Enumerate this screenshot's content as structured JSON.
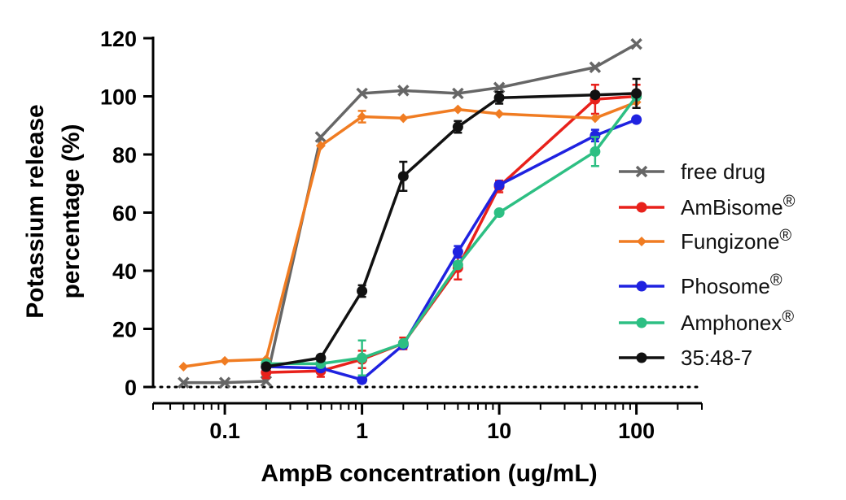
{
  "chart_data": {
    "type": "line",
    "title": "",
    "xlabel": "AmpB concentration (ug/mL)",
    "ylabel_lines": [
      "Potassium release",
      "percentage (%)"
    ],
    "x_scale": "log",
    "xlim": [
      0.03,
      300
    ],
    "ylim": [
      0,
      120
    ],
    "x_ticks": [
      0.1,
      1,
      10,
      100
    ],
    "x_tick_labels": [
      "0.1",
      "1",
      "10",
      "100"
    ],
    "y_ticks": [
      0,
      20,
      40,
      60,
      80,
      100,
      120
    ],
    "y_tick_labels": [
      "0",
      "20",
      "40",
      "60",
      "80",
      "100",
      "120"
    ],
    "reference_line": {
      "y": 0,
      "style": "dotted"
    },
    "legend_position": "right",
    "grid": false,
    "series": [
      {
        "name": "free drug",
        "suffix": "",
        "color": "#666666",
        "marker": "x",
        "points": [
          {
            "x": 0.05,
            "y": 1.5
          },
          {
            "x": 0.1,
            "y": 1.5
          },
          {
            "x": 0.2,
            "y": 2
          },
          {
            "x": 0.5,
            "y": 86
          },
          {
            "x": 1,
            "y": 101
          },
          {
            "x": 2,
            "y": 102
          },
          {
            "x": 5,
            "y": 101
          },
          {
            "x": 10,
            "y": 103
          },
          {
            "x": 50,
            "y": 110
          },
          {
            "x": 100,
            "y": 118
          }
        ]
      },
      {
        "name": "AmBisome",
        "suffix": "®",
        "color": "#e8211b",
        "marker": "circle",
        "points": [
          {
            "x": 0.2,
            "y": 5,
            "err": 2
          },
          {
            "x": 0.5,
            "y": 5.5,
            "err": 2
          },
          {
            "x": 1,
            "y": 9.5,
            "err": 3
          },
          {
            "x": 2,
            "y": 15,
            "err": 2
          },
          {
            "x": 5,
            "y": 41,
            "err": 4
          },
          {
            "x": 10,
            "y": 69,
            "err": 2
          },
          {
            "x": 50,
            "y": 99,
            "err": 5
          },
          {
            "x": 100,
            "y": 100,
            "err": 4
          }
        ]
      },
      {
        "name": "Fungizone",
        "suffix": "®",
        "color": "#f07c22",
        "marker": "diamond",
        "points": [
          {
            "x": 0.05,
            "y": 7
          },
          {
            "x": 0.1,
            "y": 9
          },
          {
            "x": 0.2,
            "y": 9.5
          },
          {
            "x": 0.5,
            "y": 83
          },
          {
            "x": 1,
            "y": 93,
            "err": 2
          },
          {
            "x": 2,
            "y": 92.5
          },
          {
            "x": 5,
            "y": 95.5
          },
          {
            "x": 10,
            "y": 94
          },
          {
            "x": 50,
            "y": 92.5
          },
          {
            "x": 100,
            "y": 98
          }
        ]
      },
      {
        "name": "Phosome",
        "suffix": "®",
        "color": "#1f22e0",
        "marker": "circle",
        "points": [
          {
            "x": 0.2,
            "y": 7,
            "err": 1
          },
          {
            "x": 0.5,
            "y": 6.5,
            "err": 1
          },
          {
            "x": 1,
            "y": 2.5,
            "err": 1
          },
          {
            "x": 2,
            "y": 14.5,
            "err": 1
          },
          {
            "x": 5,
            "y": 46.5,
            "err": 2
          },
          {
            "x": 10,
            "y": 69.5,
            "err": 1
          },
          {
            "x": 50,
            "y": 86.5,
            "err": 2
          },
          {
            "x": 100,
            "y": 92
          }
        ]
      },
      {
        "name": "Amphonex",
        "suffix": "®",
        "color": "#2dbf83",
        "marker": "circle",
        "points": [
          {
            "x": 0.2,
            "y": 8
          },
          {
            "x": 0.5,
            "y": 8
          },
          {
            "x": 1,
            "y": 10,
            "err": 6
          },
          {
            "x": 2,
            "y": 15
          },
          {
            "x": 5,
            "y": 42
          },
          {
            "x": 10,
            "y": 60
          },
          {
            "x": 50,
            "y": 81,
            "err": 5
          },
          {
            "x": 100,
            "y": 100
          }
        ]
      },
      {
        "name": "35:48-7",
        "suffix": "",
        "color": "#111111",
        "marker": "circle",
        "points": [
          {
            "x": 0.2,
            "y": 7
          },
          {
            "x": 0.5,
            "y": 10
          },
          {
            "x": 1,
            "y": 33,
            "err": 2
          },
          {
            "x": 2,
            "y": 72.5,
            "err": 5
          },
          {
            "x": 5,
            "y": 89.5,
            "err": 2
          },
          {
            "x": 10,
            "y": 99.5,
            "err": 2
          },
          {
            "x": 50,
            "y": 100.5
          },
          {
            "x": 100,
            "y": 101,
            "err": 5
          }
        ]
      }
    ]
  }
}
